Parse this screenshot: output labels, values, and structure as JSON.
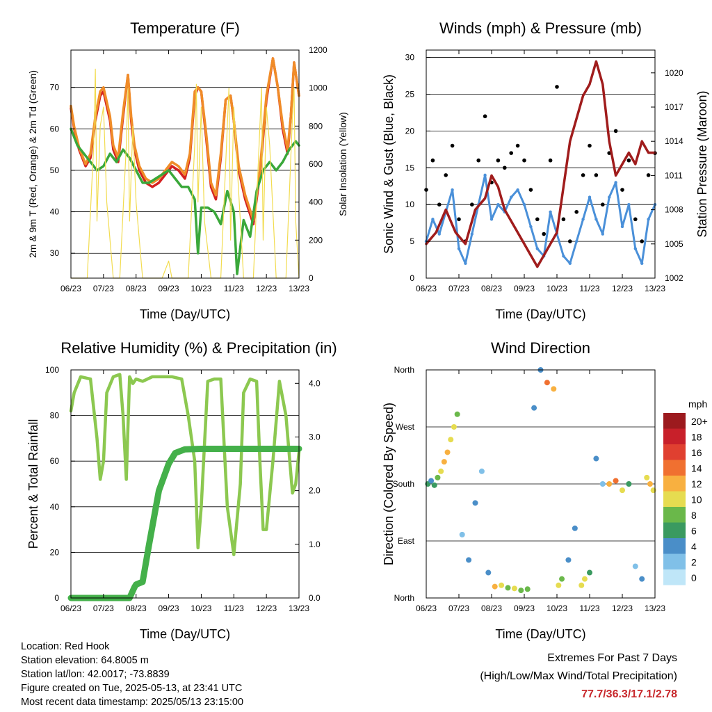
{
  "chart_data": [
    {
      "type": "line",
      "title": "Temperature (F)",
      "xlabel": "Time (Day/UTC)",
      "ylabel": "2m & 9m T (Red, Orange) & 2m Td (Green)",
      "y2label": "Solar Insolation (Yellow)",
      "x_ticks": [
        "06/23",
        "07/23",
        "08/23",
        "09/23",
        "10/23",
        "11/23",
        "12/23",
        "13/23"
      ],
      "ylim": [
        24,
        79
      ],
      "y_ticks": [
        30,
        40,
        50,
        60,
        70
      ],
      "y2lim": [
        0,
        1200
      ],
      "y2_ticks": [
        0,
        200,
        400,
        600,
        800,
        1000,
        1200
      ],
      "grid": true,
      "series": [
        {
          "name": "2m T",
          "color": "#d42121",
          "x": [
            0,
            0.1,
            0.25,
            0.45,
            0.6,
            0.75,
            0.9,
            1.0,
            1.2,
            1.3,
            1.45,
            1.6,
            1.75,
            1.85,
            1.95,
            2.1,
            2.3,
            2.5,
            2.7,
            2.9,
            3.1,
            3.3,
            3.5,
            3.65,
            3.8,
            3.9,
            4.0,
            4.15,
            4.3,
            4.45,
            4.6,
            4.75,
            4.9,
            5.0,
            5.15,
            5.35,
            5.6,
            5.8,
            6.0,
            6.2,
            6.35,
            6.5,
            6.65,
            6.75,
            6.85,
            7.0
          ],
          "y": [
            65,
            60,
            55,
            51,
            53,
            62,
            68,
            69,
            62,
            55,
            52,
            63,
            73,
            62,
            55,
            50,
            47,
            46,
            47,
            49,
            51,
            50,
            48,
            53,
            68,
            70,
            69,
            58,
            46,
            43,
            53,
            67,
            68,
            62,
            50,
            43,
            37,
            49,
            67,
            77,
            70,
            60,
            54,
            63,
            76,
            68
          ]
        },
        {
          "name": "9m T",
          "color": "#f08c28",
          "x": [
            0,
            0.1,
            0.25,
            0.45,
            0.6,
            0.75,
            0.9,
            1.0,
            1.2,
            1.3,
            1.45,
            1.6,
            1.75,
            1.85,
            1.95,
            2.1,
            2.3,
            2.5,
            2.7,
            2.9,
            3.1,
            3.3,
            3.5,
            3.65,
            3.8,
            3.9,
            4.0,
            4.15,
            4.3,
            4.45,
            4.6,
            4.75,
            4.9,
            5.0,
            5.15,
            5.35,
            5.6,
            5.8,
            6.0,
            6.2,
            6.35,
            6.5,
            6.65,
            6.75,
            6.85,
            7.0
          ],
          "y": [
            65.5,
            60.5,
            55.5,
            51.5,
            54,
            63,
            69,
            70,
            63,
            56,
            53,
            64,
            73,
            63,
            56,
            51,
            48,
            47,
            48,
            50,
            52,
            51,
            49,
            54,
            69,
            70,
            69,
            59,
            47,
            44,
            54,
            67,
            68,
            62,
            51,
            44,
            38,
            50,
            68,
            77,
            70,
            61,
            55,
            63,
            76,
            68
          ]
        },
        {
          "name": "2m Td",
          "color": "#3aa83a",
          "x": [
            0,
            0.2,
            0.4,
            0.6,
            0.8,
            1.0,
            1.2,
            1.4,
            1.6,
            1.8,
            2.0,
            2.2,
            2.4,
            2.6,
            2.8,
            3.0,
            3.2,
            3.4,
            3.6,
            3.8,
            3.9,
            4.0,
            4.2,
            4.4,
            4.6,
            4.8,
            5.0,
            5.1,
            5.3,
            5.5,
            5.7,
            5.9,
            6.1,
            6.3,
            6.5,
            6.7,
            6.9,
            7.0
          ],
          "y": [
            60,
            56,
            54,
            52,
            50,
            51,
            54,
            52,
            55,
            53,
            50,
            47,
            47,
            48,
            49,
            50,
            48,
            46,
            46,
            43,
            30,
            41,
            41,
            40,
            37,
            45,
            40,
            25,
            38,
            34,
            45,
            50,
            52,
            50,
            52,
            55,
            57,
            56
          ]
        },
        {
          "name": "Solar Insolation",
          "axis": "y2",
          "color": "#f2dc50",
          "x": [
            0,
            0.5,
            0.7,
            0.75,
            0.8,
            0.9,
            1.0,
            1.1,
            1.3,
            1.5,
            1.7,
            1.75,
            1.8,
            1.9,
            2.0,
            2.2,
            2.5,
            2.8,
            3.0,
            3.1,
            3.3,
            3.6,
            3.8,
            3.85,
            3.9,
            4.0,
            4.1,
            4.3,
            4.6,
            4.8,
            4.85,
            4.9,
            5.0,
            5.1,
            5.3,
            5.6,
            5.8,
            5.85,
            5.9,
            6.0,
            6.1,
            6.3,
            6.6,
            6.8,
            6.85,
            6.9,
            7.0
          ],
          "y": [
            0,
            0,
            700,
            1100,
            300,
            800,
            900,
            400,
            0,
            0,
            700,
            1000,
            300,
            800,
            400,
            0,
            0,
            0,
            90,
            0,
            0,
            0,
            700,
            1020,
            400,
            900,
            300,
            0,
            0,
            800,
            1000,
            200,
            900,
            600,
            0,
            0,
            800,
            1000,
            200,
            900,
            700,
            0,
            0,
            850,
            1000,
            300,
            0
          ]
        }
      ]
    },
    {
      "type": "scatter",
      "title": "Winds (mph) & Pressure (mb)",
      "xlabel": "Time (Day/UTC)",
      "ylabel": "Sonic Wind & Gust (Blue, Black)",
      "y2label": "Station Pressure (Maroon)",
      "x_ticks": [
        "06/23",
        "07/23",
        "08/23",
        "09/23",
        "10/23",
        "11/23",
        "12/23",
        "13/23"
      ],
      "ylim": [
        0,
        31
      ],
      "y_ticks": [
        0,
        5,
        10,
        15,
        20,
        25,
        30
      ],
      "y2lim": [
        1002,
        1022
      ],
      "y2_ticks": [
        1002,
        1005,
        1008,
        1011,
        1014,
        1017,
        1020
      ],
      "grid": true,
      "series": [
        {
          "name": "Sonic Wind",
          "color": "#4a90d9",
          "x": [
            0,
            0.2,
            0.4,
            0.6,
            0.8,
            1.0,
            1.2,
            1.4,
            1.6,
            1.8,
            2.0,
            2.2,
            2.4,
            2.6,
            2.8,
            3.0,
            3.2,
            3.4,
            3.6,
            3.8,
            4.0,
            4.2,
            4.4,
            4.6,
            4.8,
            5.0,
            5.2,
            5.4,
            5.6,
            5.8,
            6.0,
            6.2,
            6.4,
            6.6,
            6.8,
            7.0
          ],
          "y": [
            5,
            8,
            6,
            9,
            12,
            4,
            2,
            6,
            10,
            14,
            8,
            10,
            9,
            11,
            12,
            10,
            7,
            4,
            3,
            9,
            6,
            3,
            2,
            5,
            8,
            11,
            8,
            6,
            11,
            13,
            7,
            10,
            4,
            2,
            8,
            10
          ]
        },
        {
          "name": "Gust",
          "color": "#000000",
          "x": [
            0,
            0.2,
            0.4,
            0.6,
            0.8,
            1.0,
            1.2,
            1.4,
            1.6,
            1.8,
            2.0,
            2.2,
            2.4,
            2.6,
            2.8,
            3.0,
            3.2,
            3.4,
            3.6,
            3.8,
            4.0,
            4.2,
            4.4,
            4.6,
            4.8,
            5.0,
            5.2,
            5.4,
            5.6,
            5.8,
            6.0,
            6.2,
            6.4,
            6.6,
            6.8,
            7.0
          ],
          "y": [
            12,
            16,
            10,
            14,
            18,
            8,
            5,
            10,
            16,
            22,
            13,
            16,
            15,
            17,
            18,
            16,
            12,
            8,
            6,
            16,
            26,
            8,
            5,
            9,
            14,
            18,
            14,
            10,
            17,
            20,
            12,
            16,
            8,
            5,
            14,
            17
          ]
        },
        {
          "name": "Station Pressure",
          "axis": "y2",
          "color": "#a01c1c",
          "x": [
            0,
            0.3,
            0.6,
            0.9,
            1.2,
            1.5,
            1.8,
            2.0,
            2.2,
            2.4,
            2.6,
            2.8,
            3.0,
            3.2,
            3.4,
            3.6,
            3.8,
            4.0,
            4.2,
            4.4,
            4.6,
            4.8,
            5.0,
            5.2,
            5.4,
            5.6,
            5.8,
            6.0,
            6.2,
            6.4,
            6.6,
            6.8,
            7.0
          ],
          "y": [
            1005,
            1006,
            1008,
            1006,
            1005,
            1008,
            1009,
            1011,
            1010,
            1008,
            1007,
            1006,
            1005,
            1004,
            1003,
            1004,
            1005,
            1006,
            1010,
            1014,
            1016,
            1018,
            1019,
            1021,
            1019,
            1014,
            1011,
            1012,
            1013,
            1012,
            1014,
            1013,
            1013
          ]
        }
      ]
    },
    {
      "type": "line",
      "title": "Relative Humidity (%) & Precipitation (in)",
      "xlabel": "Time (Day/UTC)",
      "ylabel": "Percent & Total Rainfall",
      "x_ticks": [
        "06/23",
        "07/23",
        "08/23",
        "09/23",
        "10/23",
        "11/23",
        "12/23",
        "13/23"
      ],
      "ylim": [
        0,
        100
      ],
      "y_ticks": [
        0,
        20,
        40,
        60,
        80,
        100
      ],
      "y2lim": [
        0,
        4.25
      ],
      "y2_ticks": [
        0.0,
        1.0,
        2.0,
        3.0,
        4.0
      ],
      "grid": true,
      "series": [
        {
          "name": "Relative Humidity",
          "color": "#8cc850",
          "x": [
            0,
            0.1,
            0.3,
            0.6,
            0.8,
            0.9,
            1.0,
            1.1,
            1.3,
            1.5,
            1.6,
            1.7,
            1.8,
            1.9,
            2.0,
            2.2,
            2.5,
            2.8,
            3.1,
            3.4,
            3.6,
            3.8,
            3.9,
            4.0,
            4.2,
            4.4,
            4.6,
            4.8,
            5.0,
            5.2,
            5.3,
            5.5,
            5.7,
            5.8,
            5.9,
            6.0,
            6.2,
            6.4,
            6.6,
            6.8,
            6.9,
            7.0
          ],
          "y": [
            82,
            90,
            97,
            96,
            70,
            52,
            60,
            90,
            97,
            98,
            80,
            52,
            97,
            94,
            96,
            95,
            97,
            97,
            97,
            96,
            80,
            60,
            22,
            40,
            95,
            96,
            96,
            40,
            19,
            50,
            90,
            96,
            95,
            60,
            30,
            30,
            60,
            95,
            80,
            46,
            50,
            64
          ]
        },
        {
          "name": "Total Precipitation",
          "axis": "y2",
          "color": "#44b04a",
          "x": [
            0,
            1.0,
            1.8,
            1.95,
            2.0,
            2.2,
            2.4,
            2.7,
            3.0,
            3.2,
            3.5,
            4.0,
            5.0,
            6.0,
            7.0
          ],
          "y": [
            0,
            0,
            0,
            0.2,
            0.25,
            0.3,
            1.0,
            2.0,
            2.5,
            2.7,
            2.77,
            2.78,
            2.78,
            2.78,
            2.78
          ]
        }
      ]
    },
    {
      "type": "scatter",
      "title": "Wind Direction",
      "xlabel": "Time (Day/UTC)",
      "ylabel": "Direction (Colored By Speed)",
      "x_ticks": [
        "06/23",
        "07/23",
        "08/23",
        "09/23",
        "10/23",
        "11/23",
        "12/23",
        "13/23"
      ],
      "y_ticks": [
        "North",
        "East",
        "South",
        "West",
        "North"
      ],
      "ylim": [
        0,
        360
      ],
      "grid": true,
      "colorbar": {
        "unit": "mph",
        "labels": [
          "0",
          "2",
          "4",
          "6",
          "8",
          "10",
          "12",
          "14",
          "16",
          "18",
          "20+"
        ],
        "colors": [
          "#bfe6f8",
          "#80c0e8",
          "#4a8ec8",
          "#3a9a60",
          "#6ab84a",
          "#e6dc50",
          "#f8b040",
          "#f07030",
          "#e04030",
          "#c8202a",
          "#9c1a1e"
        ]
      },
      "series": [
        {
          "name": "Direction",
          "x": [
            0.05,
            0.15,
            0.25,
            0.35,
            0.45,
            0.55,
            0.65,
            0.75,
            0.85,
            0.95,
            1.1,
            1.3,
            1.5,
            1.7,
            1.9,
            2.1,
            2.3,
            2.5,
            2.7,
            2.9,
            3.1,
            3.3,
            3.5,
            3.7,
            3.9,
            4.05,
            4.15,
            4.35,
            4.55,
            4.75,
            4.85,
            5.0,
            5.2,
            5.4,
            5.6,
            5.8,
            6.0,
            6.2,
            6.4,
            6.6,
            6.75,
            6.85,
            6.95
          ],
          "y": [
            180,
            185,
            178,
            190,
            200,
            215,
            230,
            250,
            270,
            290,
            100,
            60,
            150,
            200,
            40,
            18,
            20,
            16,
            15,
            12,
            14,
            300,
            360,
            340,
            330,
            20,
            30,
            60,
            110,
            20,
            30,
            40,
            220,
            180,
            180,
            185,
            170,
            180,
            50,
            30,
            190,
            180,
            170
          ],
          "speed": [
            6,
            4,
            5,
            8,
            10,
            11,
            12,
            9,
            10,
            8,
            2,
            3,
            4,
            2,
            3,
            12,
            9,
            8,
            9,
            7,
            8,
            3,
            4,
            14,
            12,
            9,
            8,
            4,
            3,
            10,
            9,
            6,
            4,
            2,
            12,
            14,
            10,
            5,
            2,
            3,
            10,
            11,
            9
          ]
        }
      ]
    }
  ],
  "info": {
    "location": "Location: Red Hook",
    "elevation": "Station elevation: 64.8005 m",
    "latlon": "Station lat/lon: 42.0017; -73.8839",
    "created": "Figure created on Tue, 2025-05-13, at 23:41 UTC",
    "recent": "Most recent data timestamp: 2025/05/13 23:15:00"
  },
  "extremes": {
    "title": "Extremes For Past 7 Days",
    "subtitle": "(High/Low/Max Wind/Total Precipitation)",
    "values": "77.7/36.3/17.1/2.78"
  }
}
